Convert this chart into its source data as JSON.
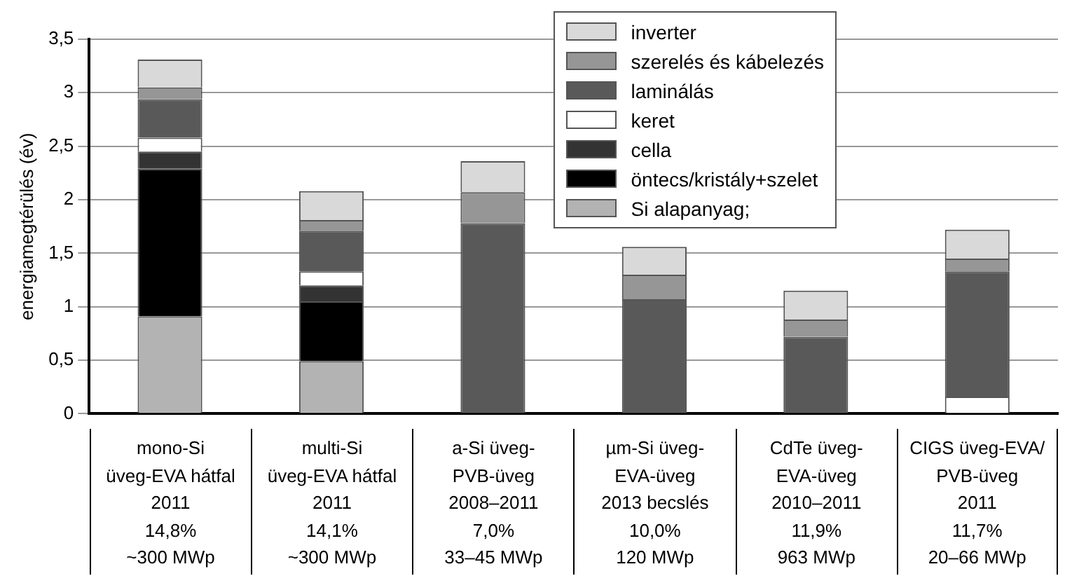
{
  "chart_data": {
    "type": "bar",
    "stacked": true,
    "ylabel": "energiamegtérülés (év)",
    "categories": [
      "mono-Si\nüveg-EVA hátfal\n2011\n14,8%\n~300 MWp",
      "multi-Si\nüveg-EVA hátfal\n2011\n14,1%\n~300 MWp",
      "a-Si üveg-\nPVB-üveg\n2008–2011\n7,0%\n33–45 MWp",
      "µm-Si üveg-\nEVA-üveg\n2013 becslés\n10,0%\n120 MWp",
      "CdTe üveg-\nEVA-üveg\n2010–2011\n11,9%\n963 MWp",
      "CIGS üveg-EVA/\nPVB-üveg\n2011\n11,7%\n20–66 MWp"
    ],
    "series": [
      {
        "name": "Si alapanyag;",
        "color": "#b3b3b3",
        "values": [
          0.91,
          0.49,
          null,
          null,
          null,
          null
        ]
      },
      {
        "name": "öntecs/kristály+szelet",
        "color": "#000000",
        "values": [
          1.38,
          0.56,
          null,
          null,
          null,
          null
        ]
      },
      {
        "name": "cella",
        "color": "#333333",
        "values": [
          0.16,
          0.15,
          null,
          null,
          null,
          null
        ]
      },
      {
        "name": "keret",
        "color": "#ffffff",
        "values": [
          0.13,
          0.13,
          null,
          null,
          null,
          0.16
        ]
      },
      {
        "name": "laminálás",
        "color": "#595959",
        "values": [
          0.36,
          0.38,
          1.78,
          1.07,
          0.72,
          1.17
        ]
      },
      {
        "name": "szerelés és kábelezés",
        "color": "#969696",
        "values": [
          0.11,
          0.1,
          0.29,
          0.23,
          0.16,
          0.12
        ]
      },
      {
        "name": "inverter",
        "color": "#d9d9d9",
        "values": [
          0.26,
          0.27,
          0.29,
          0.26,
          0.27,
          0.27
        ]
      }
    ],
    "ylim": [
      0,
      3.5
    ],
    "yticks": [
      0,
      {
        "value": 0.5,
        "label": "0,5"
      },
      1,
      {
        "value": 1.5,
        "label": "1,5"
      },
      2,
      {
        "value": 2.5,
        "label": "2,5"
      },
      3,
      {
        "value": 3.5,
        "label": "3,5"
      }
    ],
    "grid": "y",
    "legend": "top right"
  }
}
